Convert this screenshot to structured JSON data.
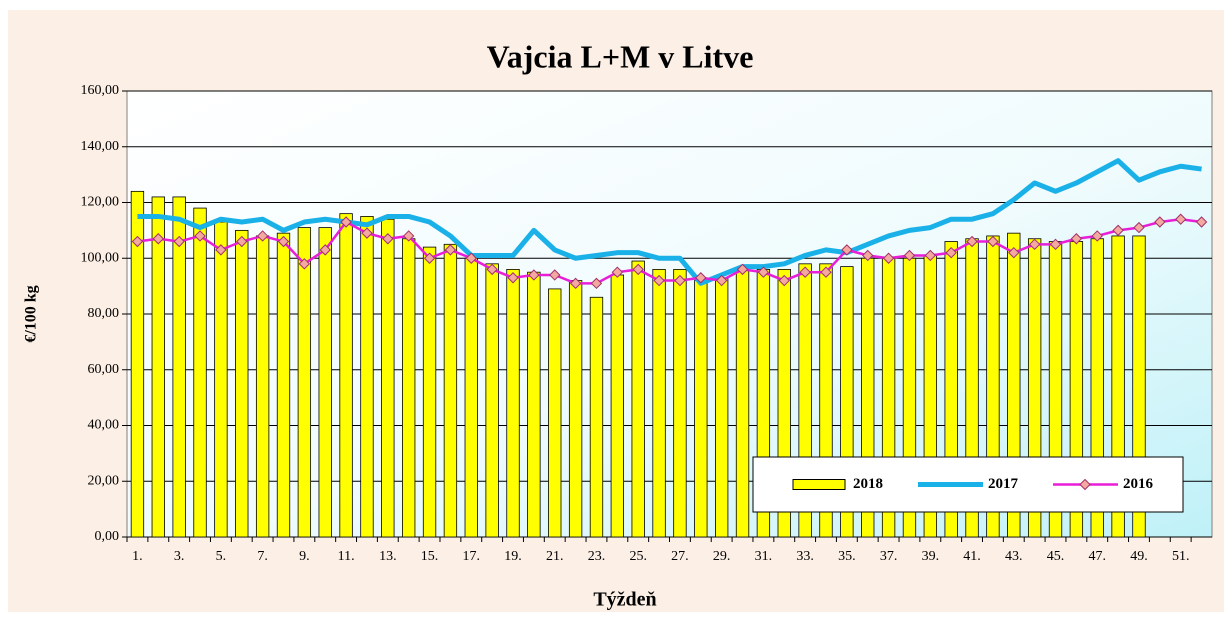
{
  "chart_data": {
    "type": "bar",
    "title": "Vajcia  L+M v Litve",
    "x_label": "Týždeň",
    "y_label": "€/100 kg",
    "categories": [
      "1.",
      null,
      "3.",
      null,
      "5.",
      null,
      "7.",
      null,
      "9.",
      null,
      "11.",
      null,
      "13.",
      null,
      "15.",
      null,
      "17.",
      null,
      "19.",
      null,
      "21.",
      null,
      "23.",
      null,
      "25.",
      null,
      "27.",
      null,
      "29.",
      null,
      "31.",
      null,
      "33.",
      null,
      "35.",
      null,
      "37.",
      null,
      "39.",
      null,
      "41.",
      null,
      "43.",
      null,
      "45.",
      null,
      "47.",
      null,
      "49.",
      null,
      "51.",
      null
    ],
    "series": [
      {
        "name": "2018",
        "type": "bar",
        "color": "#ffff00",
        "values": [
          124,
          122,
          122,
          118,
          113,
          110,
          108,
          109,
          111,
          111,
          116,
          115,
          114,
          107,
          104,
          105,
          100,
          98,
          96,
          95,
          89,
          92,
          86,
          94,
          99,
          96,
          96,
          92,
          93,
          96,
          96,
          96,
          98,
          98,
          97,
          100,
          100,
          100,
          101,
          106,
          107,
          108,
          109,
          107,
          106,
          106,
          107,
          108,
          108,
          null,
          null,
          null
        ]
      },
      {
        "name": "2017",
        "type": "line",
        "color": "#1ab0e8",
        "values": [
          115,
          115,
          114,
          111,
          114,
          113,
          114,
          110,
          113,
          114,
          113,
          112,
          115,
          115,
          113,
          108,
          101,
          101,
          101,
          110,
          103,
          100,
          101,
          102,
          102,
          100,
          100,
          91,
          94,
          97,
          97,
          98,
          101,
          103,
          102,
          105,
          108,
          110,
          111,
          114,
          114,
          116,
          121,
          127,
          124,
          127,
          131,
          135,
          128,
          131,
          133,
          132
        ]
      },
      {
        "name": "2016",
        "type": "line",
        "marker": "diamond",
        "color": "#e81ed8",
        "values": [
          106,
          107,
          106,
          108,
          103,
          106,
          108,
          106,
          98,
          103,
          113,
          109,
          107,
          108,
          100,
          103,
          100,
          96,
          93,
          94,
          94,
          91,
          91,
          95,
          96,
          92,
          92,
          93,
          92,
          96,
          95,
          92,
          95,
          95,
          103,
          101,
          100,
          101,
          101,
          102,
          106,
          106,
          102,
          105,
          105,
          107,
          108,
          110,
          111,
          113,
          114,
          113
        ]
      }
    ],
    "ylim": [
      0,
      160
    ],
    "yticks": [
      {
        "value": 0,
        "label": "0,00"
      },
      {
        "value": 20,
        "label": "20,00"
      },
      {
        "value": 40,
        "label": "40,00"
      },
      {
        "value": 60,
        "label": "60,00"
      },
      {
        "value": 80,
        "label": "80,00"
      },
      {
        "value": 100,
        "label": "100,00"
      },
      {
        "value": 120,
        "label": "120,00"
      },
      {
        "value": 140,
        "label": "140,00"
      },
      {
        "value": 160,
        "label": "160,00"
      }
    ],
    "grid": true,
    "legend": "lower right"
  }
}
